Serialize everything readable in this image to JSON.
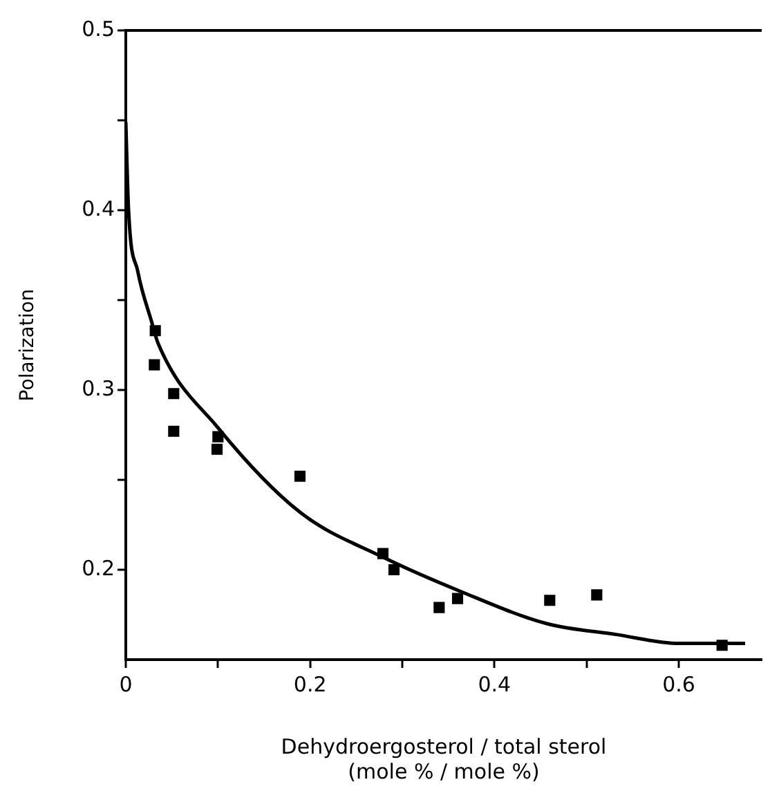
{
  "chart_data": {
    "type": "scatter",
    "xlabel": "Dehydroergosterol / total sterol\n(mole % / mole %)",
    "ylabel": "Polarization",
    "xlim": [
      0,
      0.69
    ],
    "ylim": [
      0.15,
      0.5
    ],
    "xticks": [
      0,
      {
        "value": 0.1,
        "label": null
      },
      0.2,
      {
        "value": 0.3,
        "label": null
      },
      0.4,
      {
        "value": 0.5,
        "label": null
      },
      0.6
    ],
    "yticks": [
      0.2,
      {
        "value": 0.25,
        "label": null
      },
      0.3,
      {
        "value": 0.35,
        "label": null
      },
      0.4,
      {
        "value": 0.45,
        "label": null
      },
      0.5
    ],
    "grid": false,
    "legend": false,
    "marker": "square",
    "series": [
      {
        "color": "#000000",
        "x": [
          0.032,
          0.031,
          0.052,
          0.052,
          0.1,
          0.099,
          0.189,
          0.279,
          0.291,
          0.34,
          0.36,
          0.46,
          0.511,
          0.647
        ],
        "values": [
          0.333,
          0.314,
          0.298,
          0.277,
          0.274,
          0.267,
          0.252,
          0.209,
          0.2,
          0.179,
          0.184,
          0.183,
          0.186,
          0.158
        ]
      },
      {
        "type": "line",
        "color": "#000000",
        "marker": "none",
        "x": [
          0,
          0.003,
          0.013,
          0.028,
          0.035,
          0.1,
          0.189,
          0.279,
          0.363,
          0.457,
          0.532,
          0.601,
          0.672
        ],
        "values": [
          0.449,
          0.4,
          0.366,
          0.338,
          0.326,
          0.279,
          0.232,
          0.207,
          0.188,
          0.17,
          0.164,
          0.159,
          0.159
        ]
      }
    ]
  }
}
